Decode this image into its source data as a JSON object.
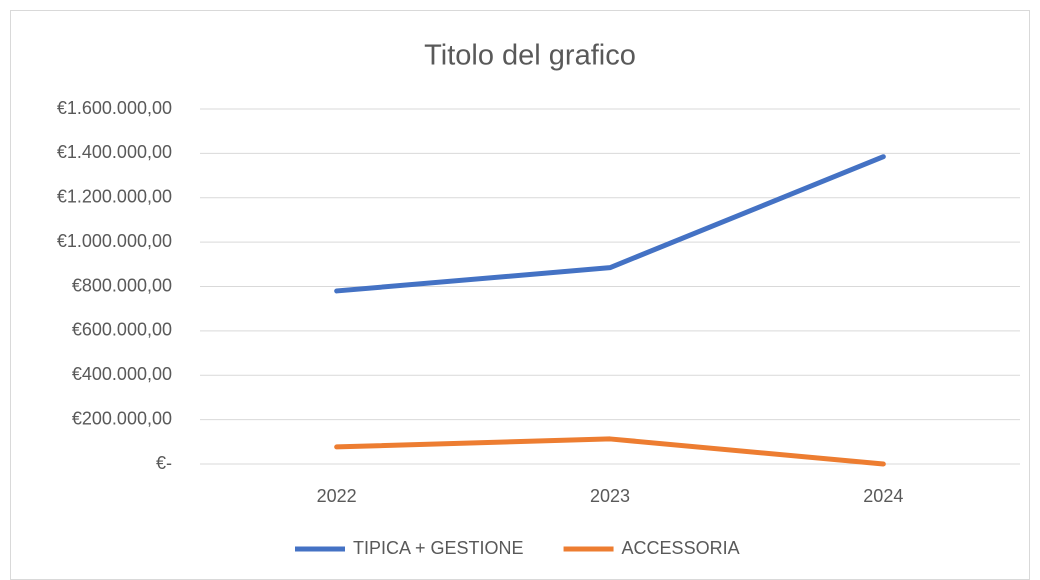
{
  "chart_data": {
    "type": "line",
    "title": "Titolo del grafico",
    "categories": [
      "2022",
      "2023",
      "2024"
    ],
    "series": [
      {
        "name": "TIPICA + GESTIONE",
        "color": "#4472c4",
        "values": [
          780000,
          885000,
          1385000
        ]
      },
      {
        "name": "ACCESSORIA",
        "color": "#ed7d31",
        "values": [
          77000,
          113000,
          0
        ]
      }
    ],
    "ylim": [
      0,
      1600000
    ],
    "yticks": [
      {
        "value": 0,
        "label": "€-"
      },
      {
        "value": 200000,
        "label": "€200.000,00"
      },
      {
        "value": 400000,
        "label": "€400.000,00"
      },
      {
        "value": 600000,
        "label": "€600.000,00"
      },
      {
        "value": 800000,
        "label": "€800.000,00"
      },
      {
        "value": 1000000,
        "label": "€1.000.000,00"
      },
      {
        "value": 1200000,
        "label": "€1.200.000,00"
      },
      {
        "value": 1400000,
        "label": "€1.400.000,00"
      },
      {
        "value": 1600000,
        "label": "€1.600.000,00"
      }
    ],
    "grid": true,
    "legend": "bottom"
  }
}
